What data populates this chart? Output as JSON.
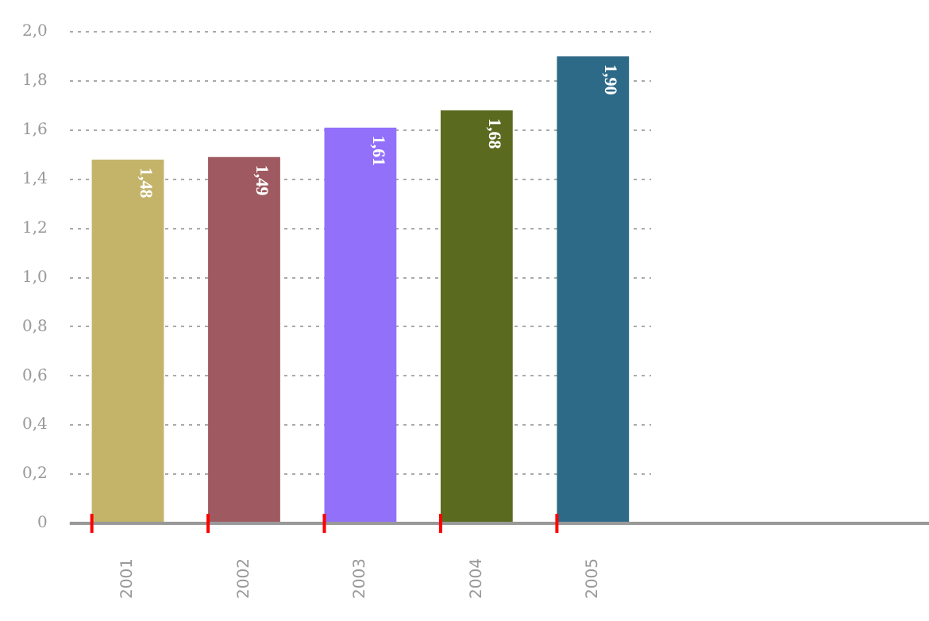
{
  "chart_data": {
    "type": "bar",
    "categories": [
      "2001",
      "2002",
      "2003",
      "2004",
      "2005"
    ],
    "values": [
      1.48,
      1.49,
      1.61,
      1.68,
      1.9
    ],
    "colors": [
      "#c3b46a",
      "#9e5a60",
      "#9370fa",
      "#5a6a1f",
      "#2d6a88"
    ],
    "value_labels": [
      "1,48",
      "1,49",
      "1,61",
      "1,68",
      "1,90"
    ],
    "ylim": [
      0,
      2.0
    ],
    "yticks": [
      0,
      {
        "value": 0.2,
        "label": "0,2"
      },
      {
        "value": 0.4,
        "label": "0,4"
      },
      {
        "value": 0.6,
        "label": "0,6"
      },
      {
        "value": 0.8,
        "label": "0,8"
      },
      {
        "value": 1.0,
        "label": "1,0"
      },
      {
        "value": 1.2,
        "label": "1,2"
      },
      {
        "value": 1.4,
        "label": "1,4"
      },
      {
        "value": 1.6,
        "label": "1,6"
      },
      {
        "value": 1.8,
        "label": "1,8"
      },
      {
        "value": 2.0,
        "label": "2,0"
      }
    ],
    "grid": "y",
    "legend": false
  }
}
